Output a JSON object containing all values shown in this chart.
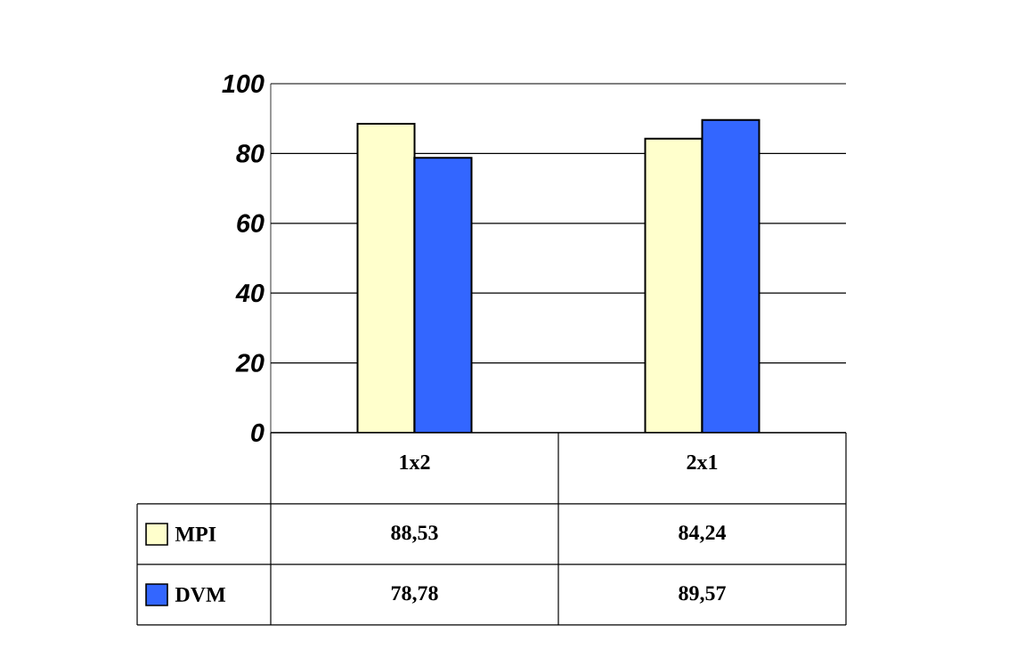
{
  "chart_data": {
    "type": "bar",
    "categories": [
      "1x2",
      "2x1"
    ],
    "series": [
      {
        "name": "MPI",
        "color": "#ffffcc",
        "values": [
          88.53,
          84.24
        ],
        "value_labels": [
          "88,53",
          "84,24"
        ]
      },
      {
        "name": "DVM",
        "color": "#3366ff",
        "values": [
          78.78,
          89.57
        ],
        "value_labels": [
          "78,78",
          "89,57"
        ]
      }
    ],
    "ylim": [
      0,
      100
    ],
    "yticks": [
      0,
      20,
      40,
      60,
      80,
      100
    ],
    "grid": "y",
    "legend": "bottom left"
  }
}
